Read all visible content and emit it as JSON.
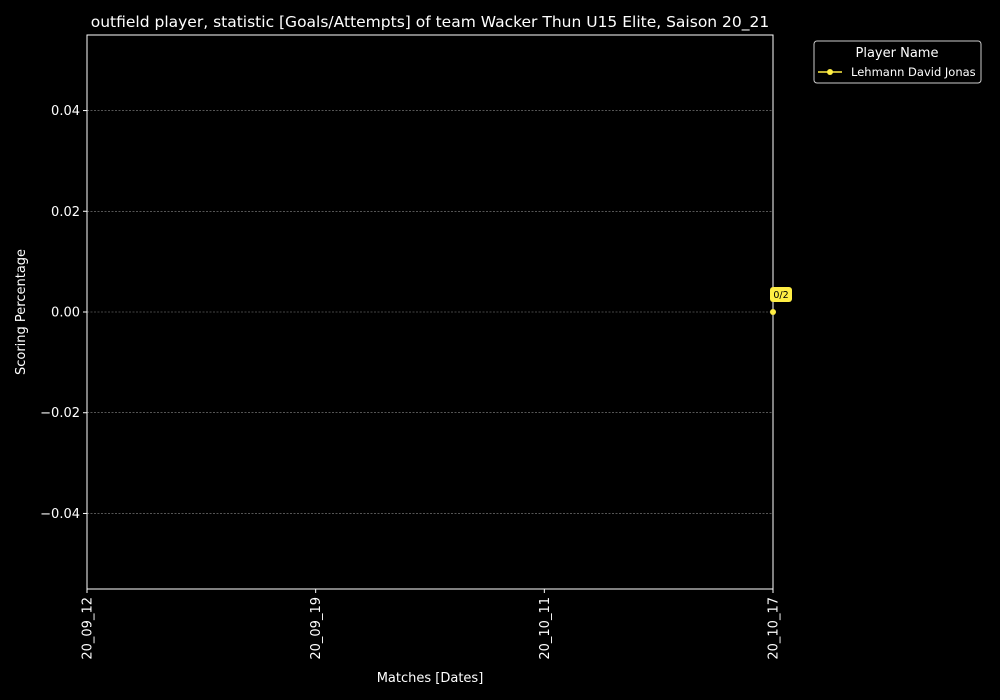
{
  "chart_data": {
    "type": "line",
    "title": "outfield player, statistic [Goals/Attempts] of team Wacker Thun U15 Elite, Saison 20_21",
    "xlabel": "Matches [Dates]",
    "ylabel": "Scoring Percentage",
    "categories": [
      "20_09_12",
      "20_09_19",
      "20_10_11",
      "20_10_17"
    ],
    "ylim": [
      -0.055,
      0.055
    ],
    "yticks": [
      -0.04,
      -0.02,
      0.0,
      0.02,
      0.04
    ],
    "ytick_labels": [
      "−0.04",
      "−0.02",
      "0.00",
      "0.02",
      "0.04"
    ],
    "grid": "horizontal dashed",
    "legend": {
      "title": "Player Name",
      "placement": "outside top-right"
    },
    "series": [
      {
        "name": "Lehmann David Jonas",
        "color": "#ffee44",
        "points": [
          {
            "x": "20_10_17",
            "y": 0.0,
            "label": "0/2"
          }
        ]
      }
    ]
  },
  "colors": {
    "background": "#000000",
    "foreground": "#ffffff",
    "grid": "#888888",
    "series": "#ffee44"
  }
}
